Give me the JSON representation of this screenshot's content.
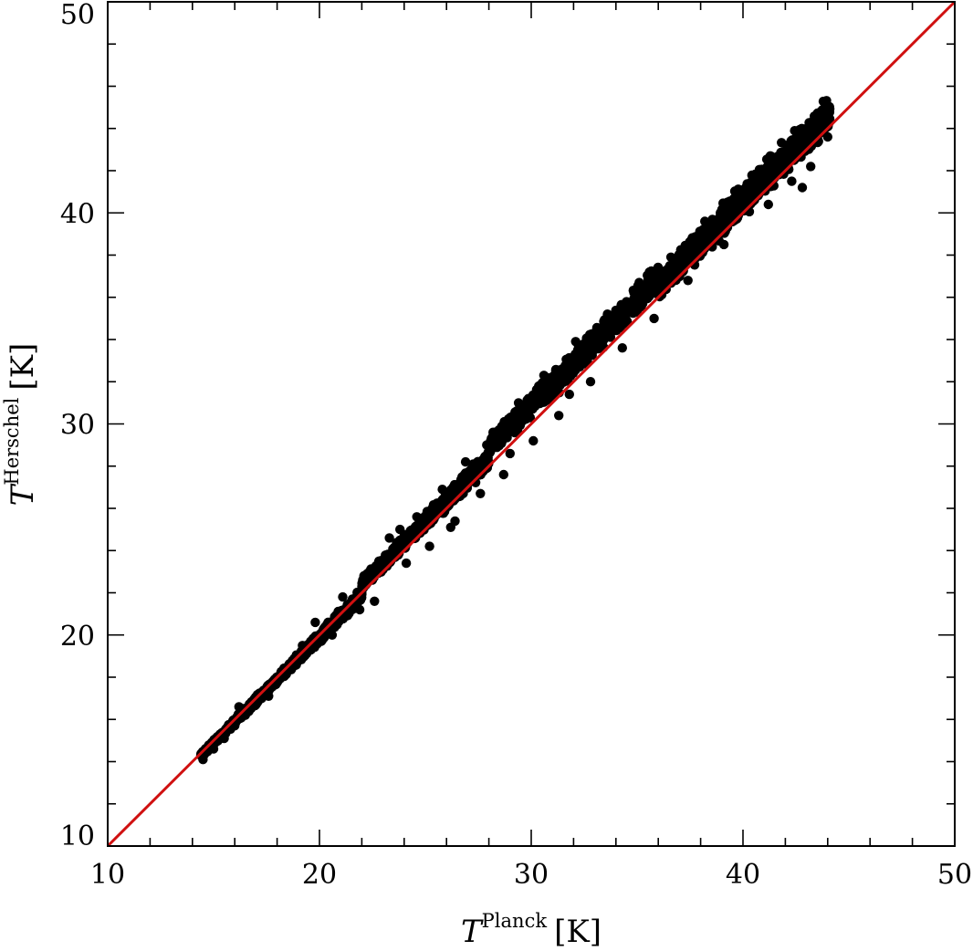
{
  "chart_data": {
    "type": "scatter",
    "title": "",
    "xlabel": {
      "main": "T",
      "sup": "Planck",
      "unit": "[K]"
    },
    "ylabel": {
      "main": "T",
      "sup": "Herschel",
      "unit": "[K]"
    },
    "xlim": [
      10,
      50
    ],
    "ylim": [
      10,
      50
    ],
    "xticks": [
      10,
      20,
      30,
      40,
      50
    ],
    "yticks": [
      10,
      20,
      30,
      40,
      50
    ],
    "minor_tick_step": 2,
    "grid": false,
    "legend": "none",
    "colors": {
      "points": "#000000",
      "line": "#d01010",
      "frame": "#000000"
    },
    "reference_line": {
      "x": [
        10,
        50
      ],
      "y": [
        10,
        50
      ]
    },
    "points_description": "dense band of several thousand points",
    "points": [
      [
        14.5,
        14.1
      ],
      [
        15.0,
        14.6
      ],
      [
        15.5,
        15.1
      ],
      [
        16.0,
        15.7
      ],
      [
        16.5,
        16.2
      ],
      [
        17.0,
        16.7
      ],
      [
        17.5,
        17.3
      ],
      [
        18.0,
        17.8
      ],
      [
        18.5,
        18.4
      ],
      [
        19.0,
        18.9
      ],
      [
        19.5,
        19.4
      ],
      [
        20.0,
        19.9
      ],
      [
        20.5,
        20.4
      ],
      [
        21.0,
        21.0
      ],
      [
        21.5,
        21.5
      ],
      [
        22.0,
        22.0
      ],
      [
        22.5,
        22.6
      ],
      [
        23.0,
        23.1
      ],
      [
        23.5,
        23.7
      ],
      [
        24.0,
        24.3
      ],
      [
        24.5,
        24.8
      ],
      [
        25.0,
        25.3
      ],
      [
        25.5,
        25.9
      ],
      [
        26.0,
        26.4
      ],
      [
        26.5,
        27.0
      ],
      [
        27.0,
        27.5
      ],
      [
        27.5,
        28.1
      ],
      [
        28.0,
        28.6
      ],
      [
        28.5,
        29.2
      ],
      [
        29.0,
        29.7
      ],
      [
        29.5,
        30.2
      ],
      [
        30.0,
        30.8
      ],
      [
        30.5,
        31.3
      ],
      [
        31.0,
        31.9
      ],
      [
        31.5,
        32.4
      ],
      [
        32.0,
        33.0
      ],
      [
        32.5,
        33.5
      ],
      [
        33.0,
        34.0
      ],
      [
        33.5,
        34.5
      ],
      [
        34.0,
        35.0
      ],
      [
        34.5,
        35.5
      ],
      [
        35.0,
        36.0
      ],
      [
        35.5,
        36.4
      ],
      [
        36.0,
        37.0
      ],
      [
        36.5,
        37.4
      ],
      [
        37.0,
        37.9
      ],
      [
        37.5,
        38.4
      ],
      [
        38.0,
        38.8
      ],
      [
        38.5,
        39.3
      ],
      [
        39.0,
        39.7
      ],
      [
        39.5,
        40.1
      ],
      [
        40.0,
        40.6
      ],
      [
        40.5,
        41.1
      ],
      [
        41.0,
        41.5
      ],
      [
        41.5,
        42.0
      ],
      [
        42.0,
        42.4
      ],
      [
        42.5,
        42.9
      ],
      [
        43.0,
        43.3
      ],
      [
        43.5,
        43.8
      ],
      [
        44.0,
        43.6
      ],
      [
        16.2,
        16.6
      ],
      [
        17.6,
        17.1
      ],
      [
        19.2,
        19.5
      ],
      [
        20.6,
        20.0
      ],
      [
        22.1,
        22.8
      ],
      [
        22.6,
        21.6
      ],
      [
        23.3,
        24.6
      ],
      [
        24.1,
        23.4
      ],
      [
        24.6,
        25.6
      ],
      [
        25.2,
        24.2
      ],
      [
        25.8,
        26.9
      ],
      [
        26.4,
        25.4
      ],
      [
        26.9,
        28.2
      ],
      [
        27.6,
        26.7
      ],
      [
        28.2,
        29.6
      ],
      [
        28.7,
        27.6
      ],
      [
        29.4,
        31.0
      ],
      [
        30.1,
        29.2
      ],
      [
        30.6,
        32.3
      ],
      [
        31.3,
        30.4
      ],
      [
        32.1,
        33.9
      ],
      [
        32.8,
        32.0
      ],
      [
        33.6,
        35.2
      ],
      [
        34.3,
        33.6
      ],
      [
        35.1,
        36.7
      ],
      [
        35.8,
        35.0
      ],
      [
        36.6,
        37.9
      ],
      [
        37.4,
        36.8
      ],
      [
        38.2,
        39.6
      ],
      [
        39.1,
        38.5
      ],
      [
        40.2,
        41.3
      ],
      [
        41.2,
        40.4
      ],
      [
        42.3,
        41.5
      ],
      [
        42.8,
        41.2
      ],
      [
        43.2,
        42.2
      ],
      [
        42.9,
        43.9
      ],
      [
        43.0,
        44.0
      ],
      [
        21.1,
        21.8
      ],
      [
        21.9,
        21.2
      ],
      [
        23.8,
        25.0
      ],
      [
        27.9,
        29.0
      ],
      [
        31.8,
        31.4
      ],
      [
        29.0,
        28.6
      ],
      [
        26.2,
        25.1
      ],
      [
        19.8,
        20.6
      ]
    ]
  }
}
